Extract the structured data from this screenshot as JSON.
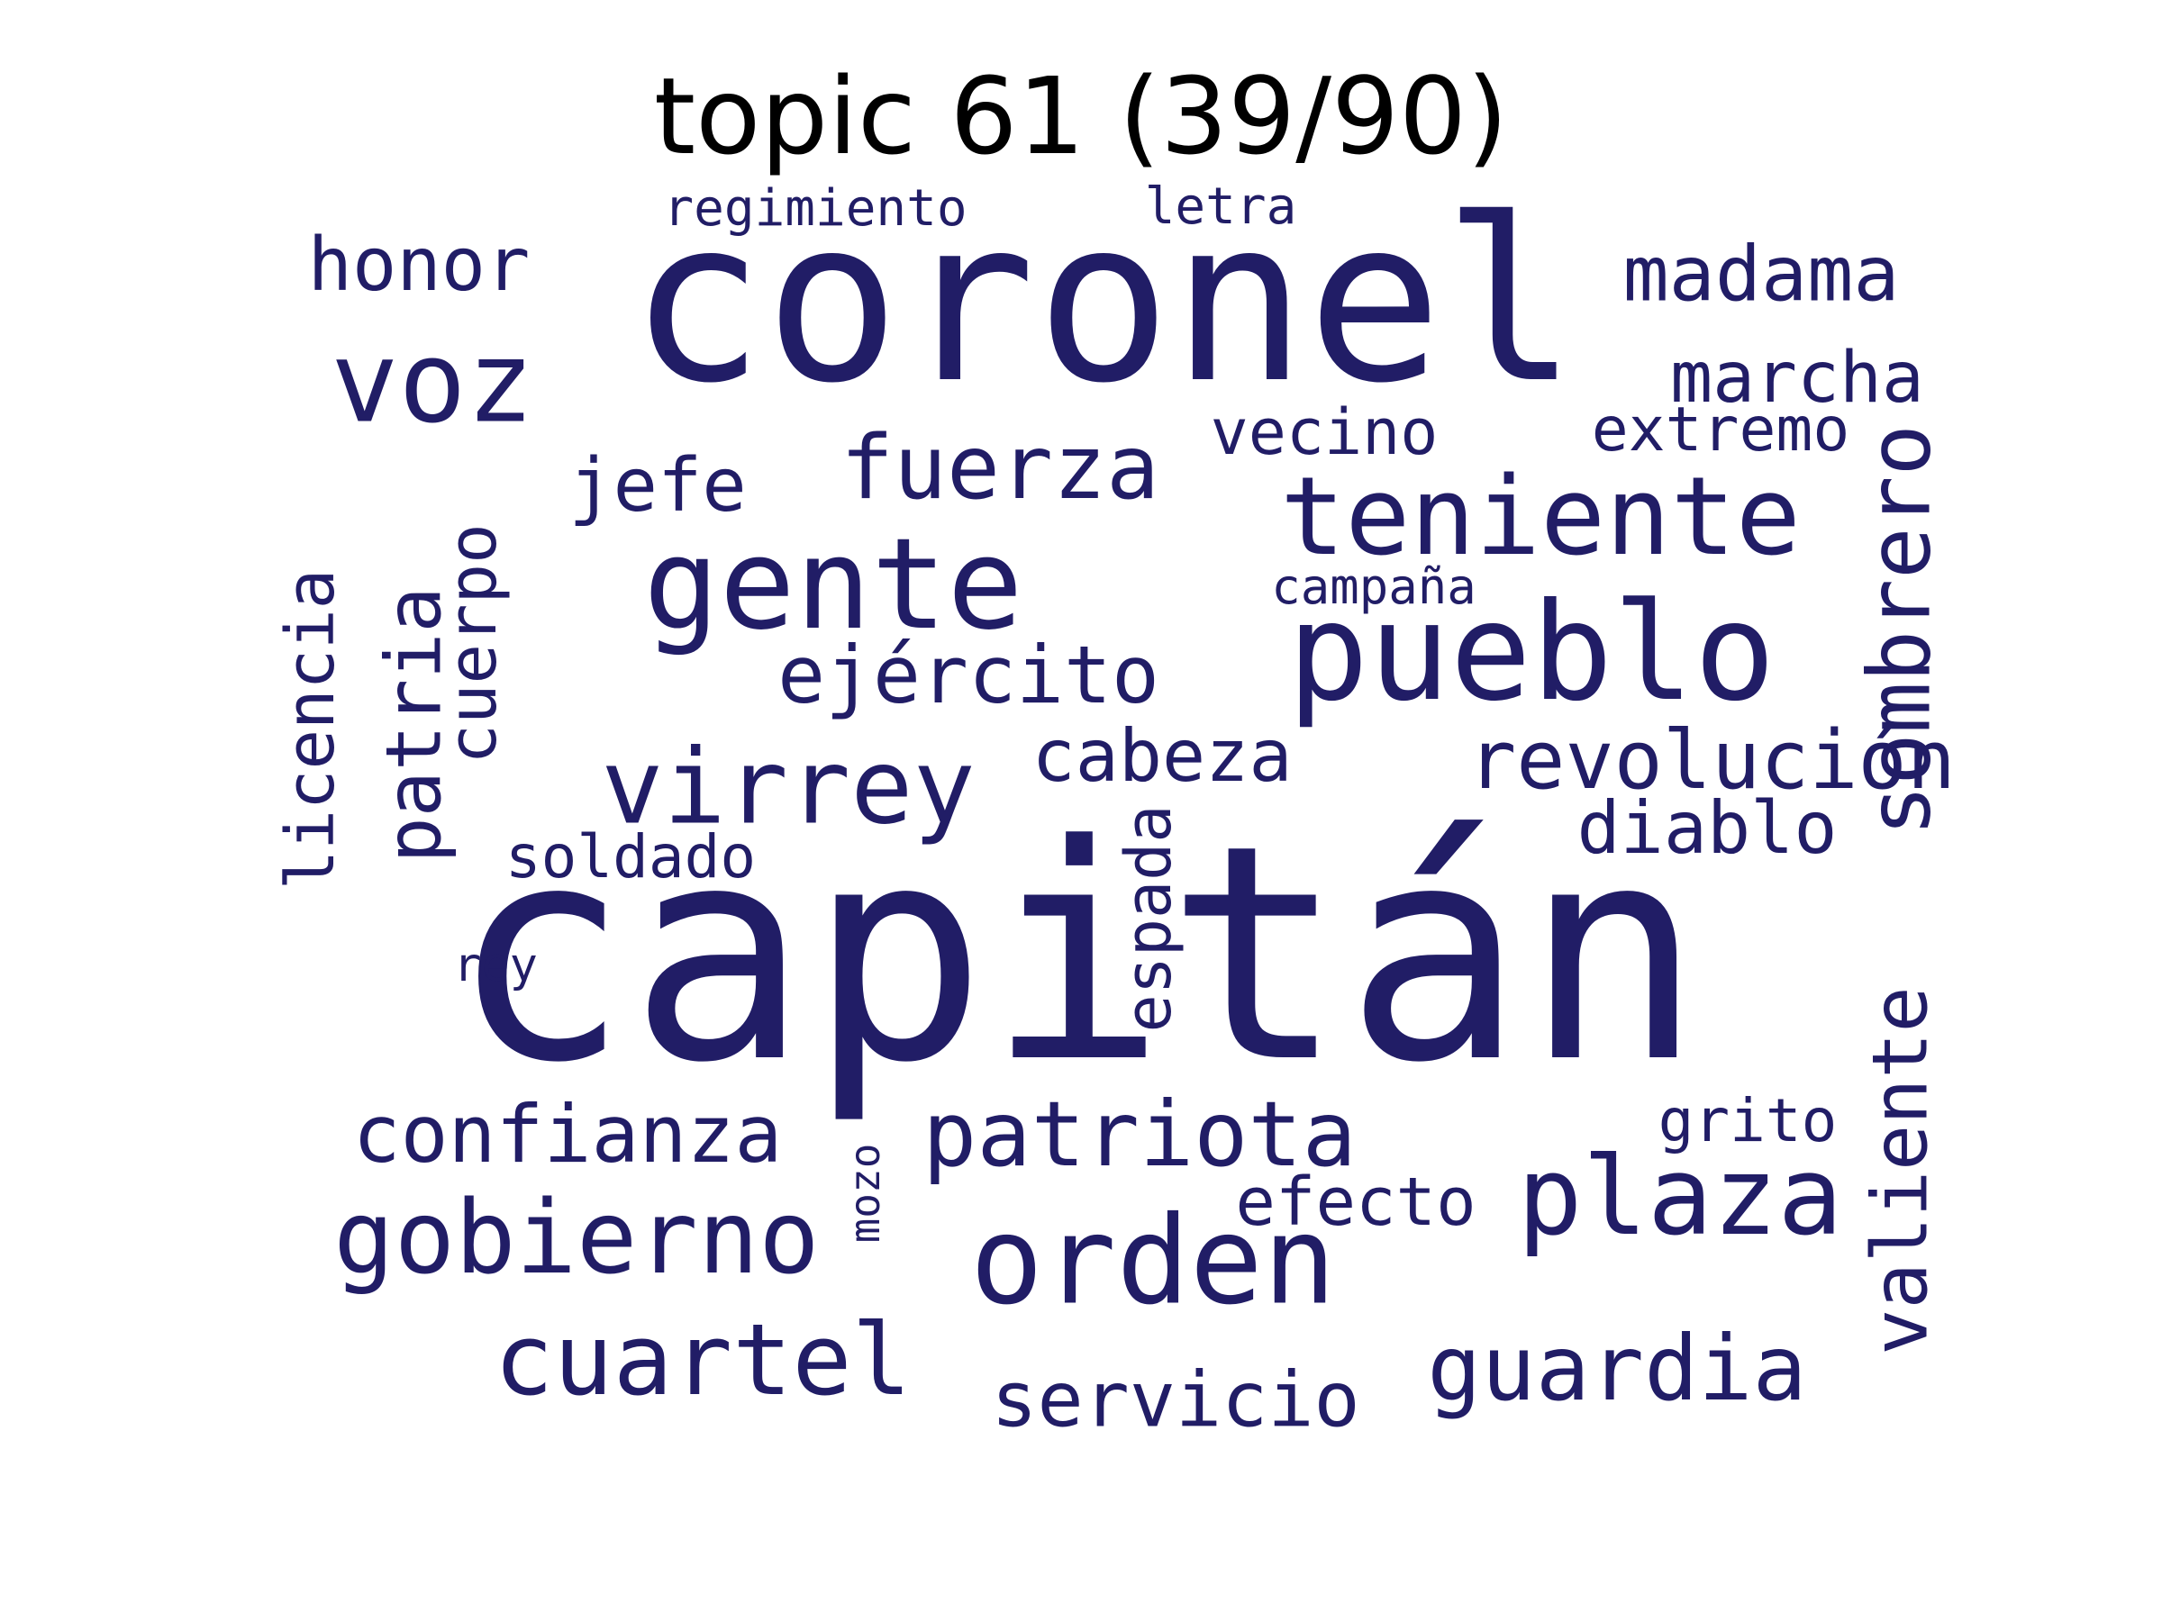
{
  "title": "topic 61 (39/90)",
  "word_color": "#211d66",
  "words": [
    {
      "text": "capitán",
      "weight": 1.0
    },
    {
      "text": "coronel",
      "weight": 0.78
    },
    {
      "text": "pueblo",
      "weight": 0.55
    },
    {
      "text": "gente",
      "weight": 0.52
    },
    {
      "text": "orden",
      "weight": 0.5
    },
    {
      "text": "voz",
      "weight": 0.46
    },
    {
      "text": "teniente",
      "weight": 0.45
    },
    {
      "text": "plaza",
      "weight": 0.44
    },
    {
      "text": "virrey",
      "weight": 0.43
    },
    {
      "text": "gobierno",
      "weight": 0.41
    },
    {
      "text": "cuartel",
      "weight": 0.41
    },
    {
      "text": "guardia",
      "weight": 0.38
    },
    {
      "text": "patriota",
      "weight": 0.37
    },
    {
      "text": "fuerza",
      "weight": 0.36
    },
    {
      "text": "sombrero",
      "weight": 0.35
    },
    {
      "text": "revolución",
      "weight": 0.33
    },
    {
      "text": "confianza",
      "weight": 0.33
    },
    {
      "text": "ejército",
      "weight": 0.33
    },
    {
      "text": "madama",
      "weight": 0.33
    },
    {
      "text": "patria",
      "weight": 0.32
    },
    {
      "text": "servicio",
      "weight": 0.32
    },
    {
      "text": "valiente",
      "weight": 0.32
    },
    {
      "text": "honor",
      "weight": 0.3
    },
    {
      "text": "jefe",
      "weight": 0.3
    },
    {
      "text": "cabeza",
      "weight": 0.3
    },
    {
      "text": "diablo",
      "weight": 0.3
    },
    {
      "text": "marcha",
      "weight": 0.29
    },
    {
      "text": "efecto",
      "weight": 0.28
    },
    {
      "text": "cuerpo",
      "weight": 0.28
    },
    {
      "text": "licencia",
      "weight": 0.28
    },
    {
      "text": "vecino",
      "weight": 0.27
    },
    {
      "text": "espada",
      "weight": 0.26
    },
    {
      "text": "extremo",
      "weight": 0.25
    },
    {
      "text": "grito",
      "weight": 0.25
    },
    {
      "text": "soldado",
      "weight": 0.25
    },
    {
      "text": "regimiento",
      "weight": 0.2
    },
    {
      "text": "letra",
      "weight": 0.2
    },
    {
      "text": "campaña",
      "weight": 0.2
    },
    {
      "text": "rey",
      "weight": 0.2
    },
    {
      "text": "mozo",
      "weight": 0.18
    }
  ]
}
